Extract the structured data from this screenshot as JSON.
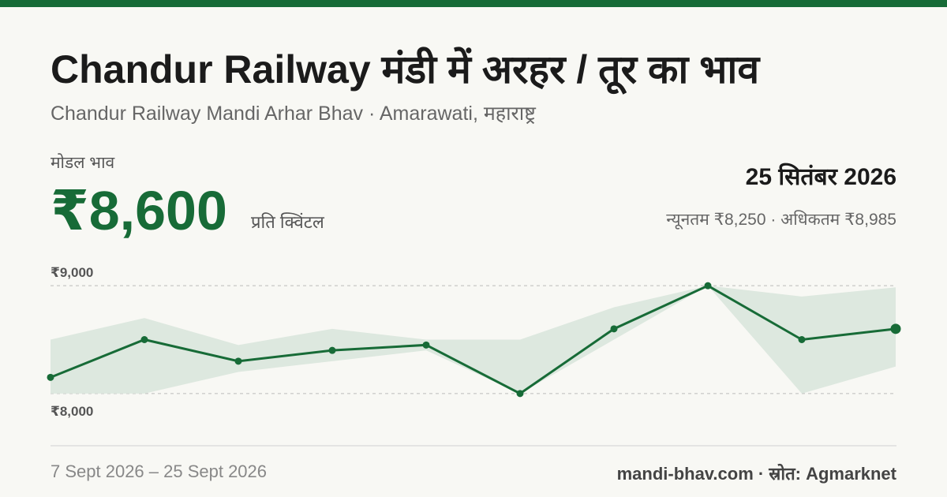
{
  "header": {
    "title": "Chandur Railway मंडी में अरहर / तूर का भाव",
    "subtitle": "Chandur Railway Mandi Arhar Bhav · Amarawati, महाराष्ट्र"
  },
  "price": {
    "label": "मोडल भाव",
    "value": 8600,
    "value_label": "₹8,600",
    "unit": "प्रति क्विंटल",
    "date": "25 सितंबर 2026",
    "min_max": "न्यूनतम ₹8,250 · अधिकतम ₹8,985"
  },
  "footer": {
    "date_range": "7 Sept 2026 – 25 Sept 2026",
    "source": "mandi-bhav.com · स्रोत: Agmarknet"
  },
  "chart_data": {
    "type": "line",
    "ylim": [
      7750,
      9250
    ],
    "yticks": [
      {
        "value": 8000,
        "label": "₹8,000"
      },
      {
        "value": 9000,
        "label": "₹9,000"
      }
    ],
    "grid": true,
    "series": [
      {
        "name": "modal",
        "color": "#176b37",
        "values": [
          8150,
          8500,
          8300,
          8400,
          8450,
          8000,
          8600,
          9000,
          8500,
          8600
        ]
      },
      {
        "name": "min",
        "color": "#dde8df",
        "values": [
          8000,
          8000,
          8200,
          8300,
          8400,
          8000,
          8500,
          9000,
          8000,
          8250
        ]
      },
      {
        "name": "max",
        "color": "#dde8df",
        "values": [
          8500,
          8700,
          8450,
          8600,
          8500,
          8500,
          8800,
          9000,
          8900,
          8985
        ]
      }
    ]
  }
}
